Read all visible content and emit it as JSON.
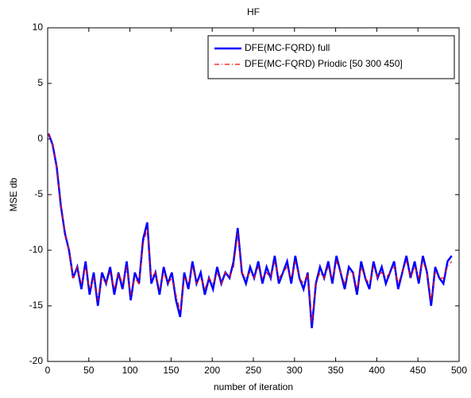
{
  "chart_data": {
    "type": "line",
    "title": "HF",
    "xlabel": "number of iteration",
    "ylabel": "MSE db",
    "x": [
      1,
      6,
      11,
      16,
      21,
      26,
      31,
      36,
      41,
      46,
      51,
      56,
      61,
      66,
      71,
      76,
      81,
      86,
      91,
      96,
      101,
      106,
      111,
      116,
      121,
      126,
      131,
      136,
      141,
      146,
      151,
      156,
      161,
      166,
      171,
      176,
      181,
      186,
      191,
      196,
      201,
      206,
      211,
      216,
      221,
      226,
      231,
      236,
      241,
      246,
      251,
      256,
      261,
      266,
      271,
      276,
      281,
      286,
      291,
      296,
      301,
      306,
      311,
      316,
      321,
      326,
      331,
      336,
      341,
      346,
      351,
      356,
      361,
      366,
      371,
      376,
      381,
      386,
      391,
      396,
      401,
      406,
      411,
      416,
      421,
      426,
      431,
      436,
      441,
      446,
      451,
      456,
      461,
      466,
      471,
      476,
      481,
      486,
      491
    ],
    "series": [
      {
        "name": "DFE(MC-FQRD) full",
        "color": "#0000ff",
        "style": "solid",
        "values": [
          0.5,
          -0.5,
          -2.5,
          -6,
          -8.5,
          -10,
          -12.5,
          -11.5,
          -13.5,
          -11,
          -14,
          -12,
          -15,
          -12,
          -13,
          -11.5,
          -14,
          -12,
          -13.5,
          -11,
          -14.5,
          -12,
          -13,
          -9,
          -7.5,
          -13,
          -12,
          -14,
          -11.5,
          -13,
          -12,
          -14.5,
          -16,
          -12,
          -13.5,
          -11,
          -13,
          -12,
          -14,
          -12.5,
          -13.5,
          -11.5,
          -13,
          -12,
          -12.5,
          -11,
          -8,
          -12,
          -13,
          -11.5,
          -12.5,
          -11,
          -13,
          -11.5,
          -12.5,
          -10.5,
          -13,
          -12,
          -11,
          -13,
          -10.5,
          -12.5,
          -13.5,
          -12,
          -17,
          -13,
          -11.5,
          -12.5,
          -11,
          -13,
          -10.5,
          -12,
          -13.5,
          -11.5,
          -12,
          -14,
          -11,
          -12.5,
          -13.5,
          -11,
          -12.5,
          -11.5,
          -13,
          -12,
          -11,
          -13.5,
          -12,
          -10.5,
          -12.5,
          -11,
          -13,
          -10.5,
          -12,
          -15,
          -11.5,
          -12.5,
          -13,
          -11,
          -10.5
        ]
      },
      {
        "name": "DFE(MC-FQRD) Priodic [50 300 450]",
        "color": "#ff0000",
        "style": "dashdot",
        "values": [
          0.5,
          -0.5,
          -2.5,
          -6,
          -8.5,
          -10,
          -12.5,
          -11.5,
          -13,
          -11.5,
          -13.5,
          -12.5,
          -14.5,
          -12.5,
          -13,
          -12,
          -13.5,
          -12,
          -13,
          -11.5,
          -14,
          -12.5,
          -13,
          -9.5,
          -8,
          -12.5,
          -12,
          -13.5,
          -12,
          -13,
          -12.5,
          -14,
          -15.5,
          -12.5,
          -13,
          -11.5,
          -13,
          -12.5,
          -13.5,
          -12.5,
          -13,
          -12,
          -13,
          -12,
          -12.5,
          -11.5,
          -8.5,
          -12,
          -12.5,
          -12,
          -12.5,
          -11.5,
          -12.5,
          -12,
          -12.5,
          -11,
          -12.5,
          -12,
          -11.5,
          -12.5,
          -11,
          -12.5,
          -13,
          -12,
          -16.5,
          -13,
          -12,
          -12.5,
          -11.5,
          -12.5,
          -11,
          -12,
          -13,
          -12,
          -12,
          -13.5,
          -11.5,
          -12.5,
          -13,
          -11.5,
          -12.5,
          -12,
          -12.5,
          -12,
          -11.5,
          -13,
          -12,
          -11,
          -12.5,
          -11.5,
          -12.5,
          -11,
          -12,
          -14.5,
          -12,
          -12.5,
          -12.5,
          -11.5,
          -11
        ]
      }
    ],
    "xlim": [
      0,
      500
    ],
    "xticks": [
      0,
      50,
      100,
      150,
      200,
      250,
      300,
      350,
      400,
      450,
      500
    ],
    "ylim": [
      -20,
      10
    ],
    "yticks": [
      -20,
      -15,
      -10,
      -5,
      0,
      5,
      10
    ],
    "legend": "upper right"
  }
}
